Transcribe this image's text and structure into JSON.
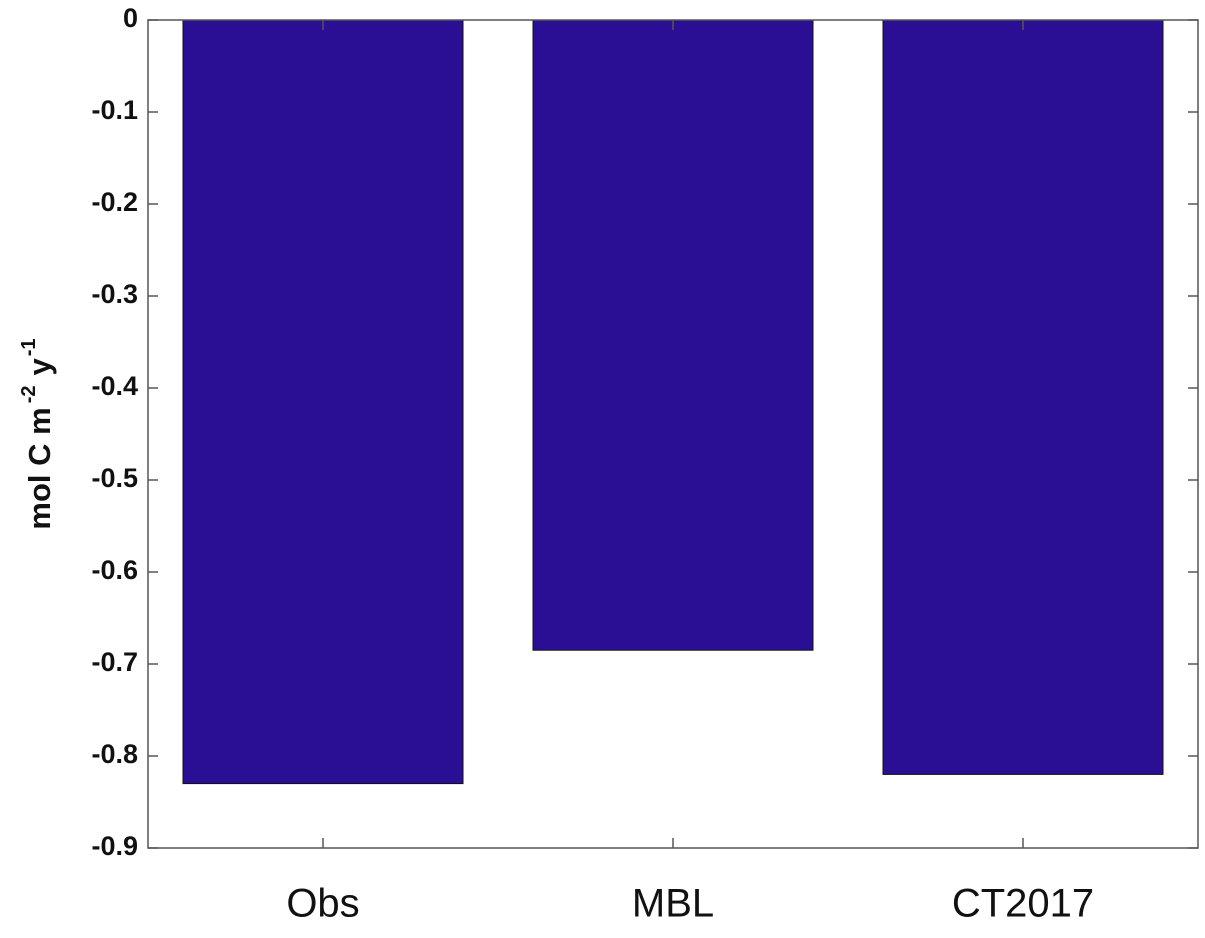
{
  "chart_data": {
    "type": "bar",
    "ylabel_parts": [
      "mol C m",
      "-2",
      "y",
      "-1"
    ],
    "categories": [
      "Obs",
      "MBL",
      "CT2017"
    ],
    "values": [
      -0.83,
      -0.685,
      -0.82
    ],
    "color": "#2a0e94",
    "ylim": [
      -0.9,
      0
    ],
    "yticks": [
      0,
      -0.1,
      -0.2,
      -0.3,
      -0.4,
      -0.5,
      -0.6,
      -0.7,
      -0.8,
      -0.9
    ]
  }
}
